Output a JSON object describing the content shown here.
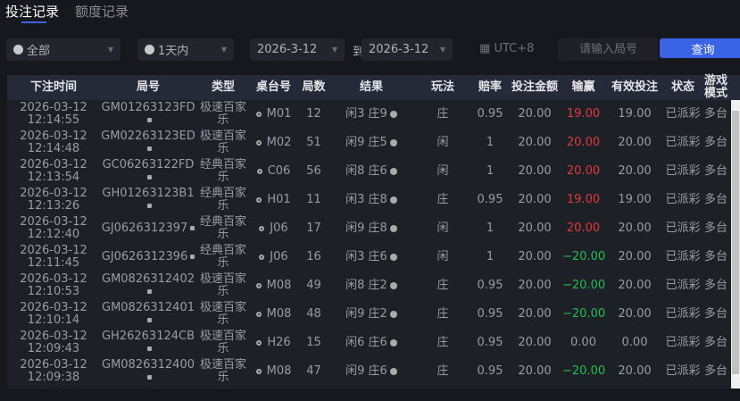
{
  "tabs": [
    {
      "label": "投注记录",
      "active": true
    },
    {
      "label": "额度记录",
      "active": false
    }
  ],
  "filters": {
    "type": "全部",
    "range": "1天内",
    "date_from": "2026-3-12",
    "to_label": "到",
    "date_to": "2026-3-12",
    "timezone": "UTC+8",
    "search_placeholder": "请输入局号",
    "query_label": "查询"
  },
  "columns": [
    "下注时间",
    "局号",
    "类型",
    "桌台号",
    "局数",
    "结果",
    "玩法",
    "赔率",
    "投注金额",
    "输赢",
    "有效投注",
    "状态",
    "游戏模式"
  ],
  "colors": {
    "accent": "#3b63e6",
    "win": "#e03a3a",
    "loss": "#1fbf4f"
  },
  "rows": [
    {
      "date": "2026-03-12",
      "time": "12:14:55",
      "round": "GM01263123FD",
      "type": "极速百家乐",
      "table": "M01",
      "count": "12",
      "result": "闲3 庄9",
      "play": "庄",
      "odds": "0.95",
      "bet": "20.00",
      "winloss": "19.00",
      "wl": "red",
      "valid": "19.00",
      "status": "已派彩",
      "mode": "多台"
    },
    {
      "date": "2026-03-12",
      "time": "12:14:48",
      "round": "GM02263123ED",
      "type": "极速百家乐",
      "table": "M02",
      "count": "51",
      "result": "闲9 庄5",
      "play": "闲",
      "odds": "1",
      "bet": "20.00",
      "winloss": "20.00",
      "wl": "red",
      "valid": "20.00",
      "status": "已派彩",
      "mode": "多台"
    },
    {
      "date": "2026-03-12",
      "time": "12:13:54",
      "round": "GC06263122FD",
      "type": "经典百家乐",
      "table": "C06",
      "count": "56",
      "result": "闲8 庄6",
      "play": "闲",
      "odds": "1",
      "bet": "20.00",
      "winloss": "20.00",
      "wl": "red",
      "valid": "20.00",
      "status": "已派彩",
      "mode": "多台"
    },
    {
      "date": "2026-03-12",
      "time": "12:13:26",
      "round": "GH01263123B1",
      "type": "经典百家乐",
      "table": "H01",
      "count": "11",
      "result": "闲3 庄8",
      "play": "庄",
      "odds": "0.95",
      "bet": "20.00",
      "winloss": "19.00",
      "wl": "red",
      "valid": "19.00",
      "status": "已派彩",
      "mode": "多台"
    },
    {
      "date": "2026-03-12",
      "time": "12:12:40",
      "round": "GJ0626312397",
      "type": "经典百家乐",
      "table": "J06",
      "count": "17",
      "result": "闲9 庄8",
      "play": "闲",
      "odds": "1",
      "bet": "20.00",
      "winloss": "20.00",
      "wl": "red",
      "valid": "20.00",
      "status": "已派彩",
      "mode": "多台"
    },
    {
      "date": "2026-03-12",
      "time": "12:11:45",
      "round": "GJ0626312396",
      "type": "经典百家乐",
      "table": "J06",
      "count": "16",
      "result": "闲3 庄6",
      "play": "闲",
      "odds": "1",
      "bet": "20.00",
      "winloss": "−20.00",
      "wl": "green",
      "valid": "20.00",
      "status": "已派彩",
      "mode": "多台"
    },
    {
      "date": "2026-03-12",
      "time": "12:10:53",
      "round": "GM0826312402",
      "type": "极速百家乐",
      "table": "M08",
      "count": "49",
      "result": "闲8 庄2",
      "play": "庄",
      "odds": "0.95",
      "bet": "20.00",
      "winloss": "−20.00",
      "wl": "green",
      "valid": "20.00",
      "status": "已派彩",
      "mode": "多台"
    },
    {
      "date": "2026-03-12",
      "time": "12:10:14",
      "round": "GM0826312401",
      "type": "极速百家乐",
      "table": "M08",
      "count": "48",
      "result": "闲9 庄2",
      "play": "庄",
      "odds": "0.95",
      "bet": "20.00",
      "winloss": "−20.00",
      "wl": "green",
      "valid": "20.00",
      "status": "已派彩",
      "mode": "多台"
    },
    {
      "date": "2026-03-12",
      "time": "12:09:43",
      "round": "GH26263124CB",
      "type": "极速百家乐",
      "table": "H26",
      "count": "15",
      "result": "闲6 庄6",
      "play": "庄",
      "odds": "0.95",
      "bet": "20.00",
      "winloss": "0.00",
      "wl": "",
      "valid": "0.00",
      "status": "已派彩",
      "mode": "多台"
    },
    {
      "date": "2026-03-12",
      "time": "12:09:38",
      "round": "GM0826312400",
      "type": "极速百家乐",
      "table": "M08",
      "count": "47",
      "result": "闲9 庄6",
      "play": "庄",
      "odds": "0.95",
      "bet": "20.00",
      "winloss": "−20.00",
      "wl": "green",
      "valid": "20.00",
      "status": "已派彩",
      "mode": "多台"
    }
  ]
}
